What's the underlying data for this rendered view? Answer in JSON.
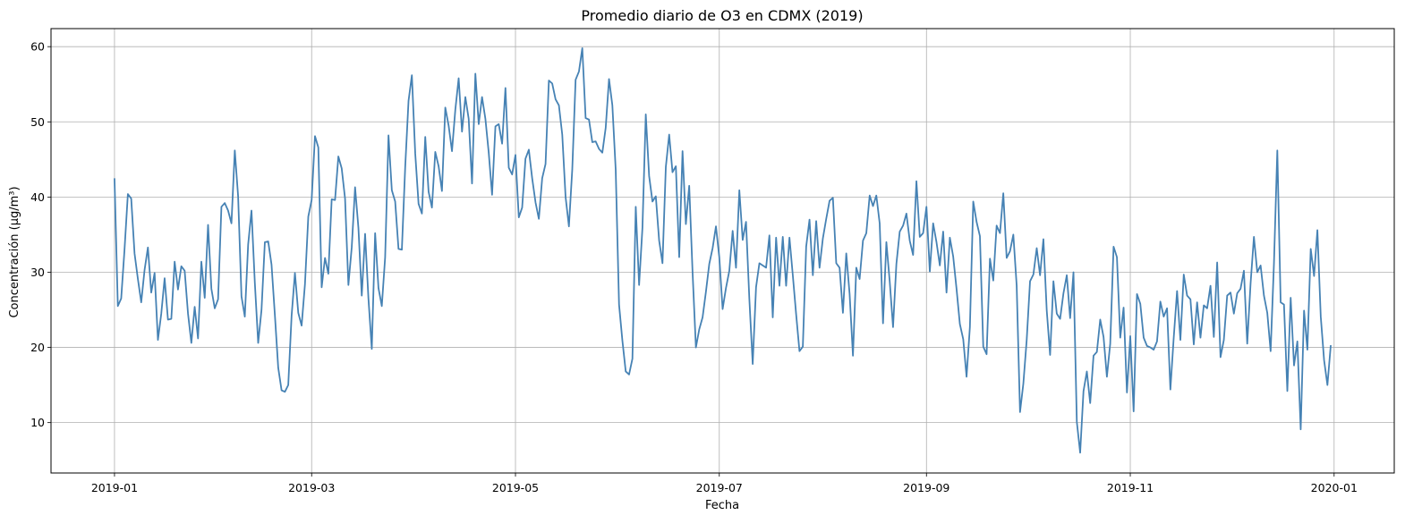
{
  "chart_data": {
    "type": "line",
    "title": "Promedio diario de O3 en CDMX (2019)",
    "xlabel": "Fecha",
    "ylabel": "Concentración (µg/m³)",
    "x_start": "2019-01-01",
    "x_end": "2019-12-31",
    "xlim": [
      "2018-12-13",
      "2020-01-19"
    ],
    "ylim": [
      3.3,
      62.4
    ],
    "x_ticks": [
      "2019-01",
      "2019-03",
      "2019-05",
      "2019-07",
      "2019-09",
      "2019-11",
      "2020-01"
    ],
    "x_tick_dates": [
      "2019-01-01",
      "2019-03-01",
      "2019-05-01",
      "2019-07-01",
      "2019-09-01",
      "2019-11-01",
      "2020-01-01"
    ],
    "y_ticks": [
      10,
      20,
      30,
      40,
      50,
      60
    ],
    "grid": true,
    "line_color": "#4682b4",
    "series": [
      {
        "name": "",
        "values": [
          42.5,
          25.5,
          26.5,
          33.0,
          40.4,
          39.8,
          32.5,
          29.1,
          26.0,
          30.3,
          33.3,
          27.3,
          29.9,
          21.0,
          24.5,
          29.2,
          23.7,
          23.8,
          31.4,
          27.7,
          30.8,
          30.2,
          24.5,
          20.6,
          25.4,
          21.2,
          31.4,
          26.6,
          36.3,
          27.8,
          25.2,
          26.4,
          38.7,
          39.2,
          38.2,
          36.5,
          46.2,
          40.1,
          26.8,
          24.1,
          33.7,
          38.2,
          28.6,
          20.6,
          25.0,
          34.0,
          34.1,
          31.0,
          24.3,
          17.3,
          14.3,
          14.1,
          15.0,
          24.2,
          29.9,
          24.6,
          22.9,
          28.4,
          37.4,
          39.6,
          48.1,
          46.6,
          28.0,
          31.9,
          29.8,
          39.7,
          39.6,
          45.4,
          43.8,
          39.8,
          28.3,
          33.3,
          41.3,
          35.9,
          26.9,
          35.1,
          26.5,
          19.8,
          35.2,
          27.9,
          25.5,
          32.0,
          48.2,
          40.9,
          39.4,
          33.1,
          33.0,
          44.0,
          52.8,
          56.2,
          45.8,
          39.1,
          37.8,
          48.0,
          40.7,
          38.6,
          46.0,
          44.1,
          40.8,
          51.9,
          49.5,
          46.1,
          51.6,
          55.8,
          48.7,
          53.3,
          50.4,
          41.8,
          56.4,
          49.7,
          53.3,
          50.4,
          45.9,
          40.3,
          49.4,
          49.7,
          47.1,
          54.5,
          43.9,
          43.0,
          45.6,
          37.3,
          38.6,
          45.1,
          46.3,
          42.5,
          39.3,
          37.1,
          42.5,
          44.4,
          55.5,
          55.1,
          53.0,
          52.2,
          48.3,
          40.0,
          36.1,
          43.7,
          55.6,
          56.7,
          59.8,
          50.5,
          50.3,
          47.3,
          47.4,
          46.4,
          45.9,
          49.2,
          55.7,
          52.2,
          43.6,
          25.7,
          20.9,
          16.8,
          16.4,
          18.5,
          38.7,
          28.3,
          35.9,
          51.0,
          42.8,
          39.4,
          40.1,
          34.2,
          31.2,
          44.0,
          48.3,
          43.3,
          44.1,
          32.0,
          46.1,
          36.4,
          41.5,
          30.0,
          20.0,
          22.4,
          24.0,
          27.4,
          31.1,
          33.2,
          36.1,
          32.0,
          25.1,
          27.9,
          30.2,
          35.5,
          30.6,
          40.9,
          34.3,
          36.7,
          26.4,
          17.8,
          28.0,
          31.2,
          30.9,
          30.6,
          34.9,
          24.0,
          34.6,
          28.2,
          34.7,
          28.2,
          34.6,
          29.6,
          24.4,
          19.5,
          20.1,
          33.4,
          37.0,
          29.6,
          36.8,
          30.6,
          34.5,
          37.1,
          39.5,
          39.9,
          31.2,
          30.6,
          24.6,
          32.5,
          27.1,
          18.9,
          30.6,
          29.1,
          34.2,
          35.2,
          40.2,
          38.8,
          40.2,
          36.5,
          23.2,
          34.0,
          28.8,
          22.7,
          31.1,
          35.4,
          36.2,
          37.8,
          34.2,
          32.3,
          42.1,
          34.7,
          35.2,
          38.7,
          30.1,
          36.5,
          34.0,
          30.9,
          35.4,
          27.3,
          34.6,
          32.1,
          27.8,
          23.1,
          21.1,
          16.1,
          22.7,
          39.4,
          36.7,
          34.8,
          20.1,
          19.1,
          31.8,
          28.9,
          36.2,
          35.2,
          40.5,
          31.9,
          32.8,
          35.0,
          28.2,
          11.4,
          15.2,
          21.0,
          28.8,
          29.7,
          33.2,
          29.6,
          34.4,
          24.9,
          19.0,
          28.8,
          24.5,
          23.8,
          27.2,
          29.6,
          23.9,
          30.0,
          10.1,
          6.0,
          14.2,
          16.8,
          12.6,
          18.9,
          19.4,
          23.7,
          21.4,
          16.1,
          20.5,
          33.4,
          32.0,
          21.3,
          25.3,
          14.0,
          21.5,
          11.5,
          27.1,
          25.8,
          21.3,
          20.2,
          20.0,
          19.7,
          20.8,
          26.1,
          24.1,
          25.2,
          14.4,
          21.3,
          27.5,
          21.0,
          29.7,
          26.9,
          26.4,
          20.4,
          26.0,
          21.3,
          25.6,
          25.2,
          28.2,
          21.4,
          31.3,
          18.7,
          21.0,
          26.9,
          27.3,
          24.5,
          27.2,
          27.8,
          30.2,
          20.5,
          28.5,
          34.7,
          30.0,
          30.9,
          26.9,
          24.6,
          19.5,
          31.2,
          46.2,
          26.0,
          25.7,
          14.2,
          26.6,
          17.6,
          20.8,
          9.1,
          24.9,
          19.7,
          33.1,
          29.5,
          35.6,
          24.1,
          18.3,
          15.0,
          20.3
        ]
      }
    ]
  }
}
